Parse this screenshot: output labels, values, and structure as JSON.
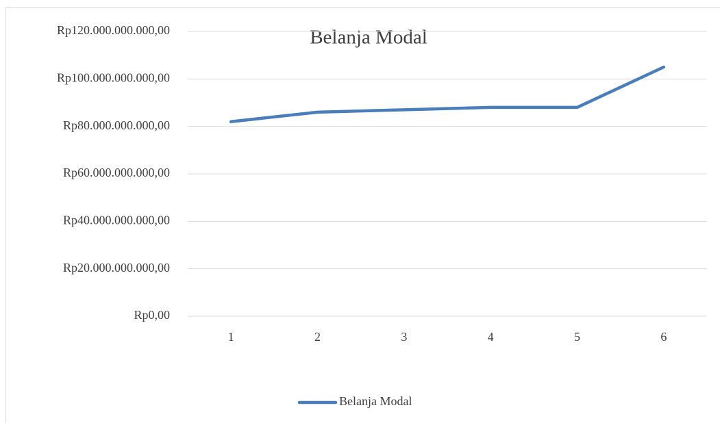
{
  "chart_data": {
    "type": "line",
    "title": "Belanja Modal",
    "categories": [
      "1",
      "2",
      "3",
      "4",
      "5",
      "6"
    ],
    "series": [
      {
        "name": "Belanja Modal",
        "color": "#4a7ebb",
        "values": [
          82000000000,
          86000000000,
          87000000000,
          88000000000,
          88000000000,
          105000000000
        ]
      }
    ],
    "ylim": [
      0,
      120000000000
    ],
    "yticks": [
      {
        "value": 0,
        "label": "Rp0,00"
      },
      {
        "value": 20000000000,
        "label": "Rp20.000.000.000,00"
      },
      {
        "value": 40000000000,
        "label": "Rp40.000.000.000,00"
      },
      {
        "value": 60000000000,
        "label": "Rp60.000.000.000,00"
      },
      {
        "value": 80000000000,
        "label": "Rp80.000.000.000,00"
      },
      {
        "value": 100000000000,
        "label": "Rp100.000.000.000,00"
      },
      {
        "value": 120000000000,
        "label": "Rp120.000.000.000,00"
      }
    ],
    "grid": true,
    "legend": "bottom"
  }
}
